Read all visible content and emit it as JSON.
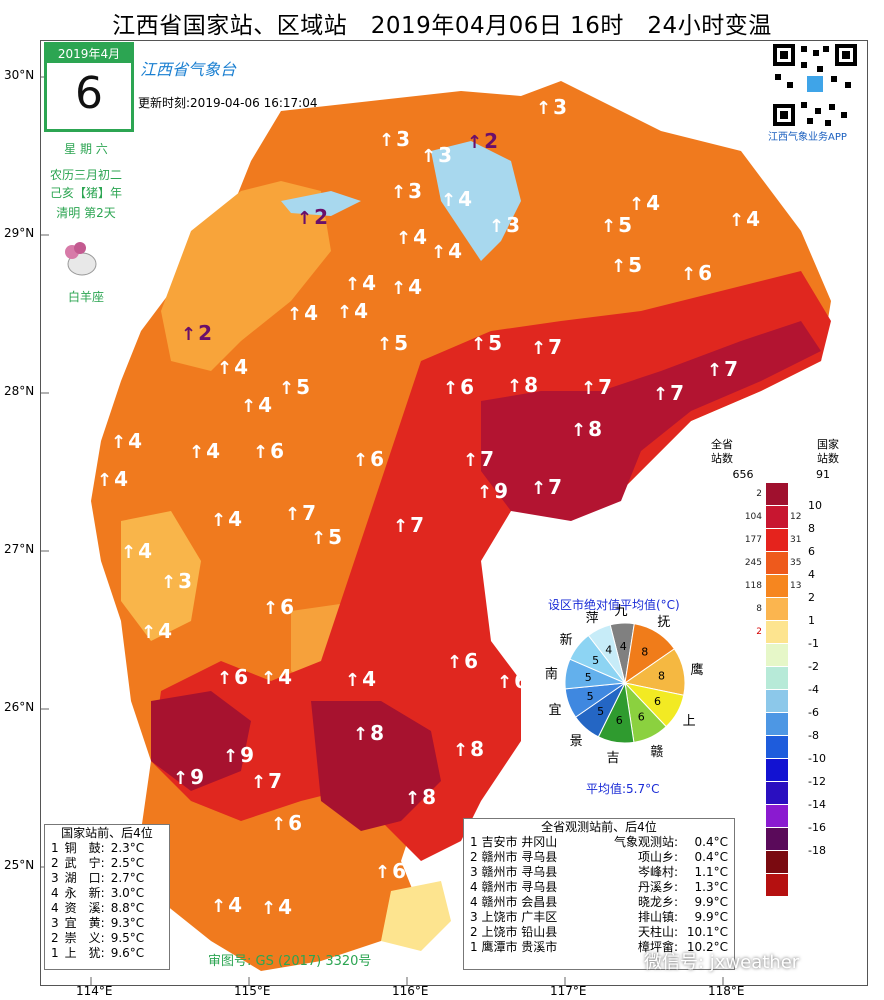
{
  "title": "江西省国家站、区域站　2019年04月06日 16时　24小时变温",
  "date_box": {
    "month": "2019年4月",
    "day": "6"
  },
  "side_info": {
    "weekday": "星 期 六",
    "lunar1": "农历三月初二",
    "lunar2": "己亥【猪】年",
    "solar_term": "清明  第2天",
    "zodiac": "白羊座"
  },
  "logo": "江西省气象台",
  "update": "更新时刻:2019-04-06 16:17:04",
  "qr_label": "江西气象业务APP",
  "lat_labels": [
    "30°N",
    "29°N",
    "28°N",
    "27°N",
    "26°N",
    "25°N"
  ],
  "lon_labels": [
    "114°E",
    "115°E",
    "116°E",
    "117°E",
    "118°E"
  ],
  "legend": {
    "header_all": "全省\n站数",
    "header_nat": "国家\n站数",
    "total_all": "656",
    "total_nat": "91",
    "bins": [
      {
        "color": "#a0102e",
        "all": "2",
        "nat": "",
        "label": "10"
      },
      {
        "color": "#c81630",
        "all": "104",
        "nat": "12",
        "label": "8"
      },
      {
        "color": "#e5231d",
        "all": "177",
        "nat": "31",
        "label": "6"
      },
      {
        "color": "#ee5a1c",
        "all": "245",
        "nat": "35",
        "label": "4"
      },
      {
        "color": "#f6861f",
        "all": "118",
        "nat": "13",
        "label": "2"
      },
      {
        "color": "#fbb54f",
        "all": "8",
        "nat": "",
        "label": "1"
      },
      {
        "color": "#fde48f",
        "all": "2",
        "nat": "",
        "label": "-1"
      },
      {
        "color": "#e6f7c8",
        "all": "",
        "nat": "",
        "label": "-2"
      },
      {
        "color": "#b7ead8",
        "all": "",
        "nat": "",
        "label": "-4"
      },
      {
        "color": "#8cc8ea",
        "all": "",
        "nat": "",
        "label": "-6"
      },
      {
        "color": "#4d97e4",
        "all": "",
        "nat": "",
        "label": "-8"
      },
      {
        "color": "#1e5cdc",
        "all": "",
        "nat": "",
        "label": "-10"
      },
      {
        "color": "#1212d2",
        "all": "",
        "nat": "",
        "label": "-12"
      },
      {
        "color": "#2a0fc0",
        "all": "",
        "nat": "",
        "label": "-14"
      },
      {
        "color": "#8a1ad0",
        "all": "",
        "nat": "",
        "label": "-16"
      },
      {
        "color": "#5a0a5a",
        "all": "",
        "nat": "",
        "label": "-18"
      },
      {
        "color": "#7a0a10",
        "all": "",
        "nat": "",
        "label": ""
      },
      {
        "color": "#b51010",
        "all": "",
        "nat": "",
        "label": ""
      }
    ]
  },
  "pie": {
    "title": "设区市绝对值平均值(°C)",
    "average": "平均值:5.7°C",
    "slices": [
      {
        "city": "九",
        "value": "4",
        "color": "#808080"
      },
      {
        "city": "抚",
        "value": "8",
        "color": "#f07c1a"
      },
      {
        "city": "鹰",
        "value": "8",
        "color": "#f5b841"
      },
      {
        "city": "上",
        "value": "6",
        "color": "#f2ea23"
      },
      {
        "city": "赣",
        "value": "6",
        "color": "#8bd13f"
      },
      {
        "city": "吉",
        "value": "6",
        "color": "#2f9b2f"
      },
      {
        "city": "景",
        "value": "5",
        "color": "#2466c4"
      },
      {
        "city": "宜",
        "value": "5",
        "color": "#3f88e0"
      },
      {
        "city": "南",
        "value": "5",
        "color": "#63b0ec"
      },
      {
        "city": "新",
        "value": "5",
        "color": "#8dd4f3"
      },
      {
        "city": "萍",
        "value": "4",
        "color": "#c7ecf8"
      }
    ]
  },
  "left_box": {
    "header": "国家站前、后4位",
    "rows": [
      {
        "rank": "1",
        "name": "铜　鼓:",
        "value": "2.3°C"
      },
      {
        "rank": "2",
        "name": "武　宁:",
        "value": "2.5°C"
      },
      {
        "rank": "3",
        "name": "湖　口:",
        "value": "2.7°C"
      },
      {
        "rank": "4",
        "name": "永　新:",
        "value": "3.0°C"
      },
      {
        "rank": "4",
        "name": "资　溪:",
        "value": "8.8°C"
      },
      {
        "rank": "3",
        "name": "宜　黄:",
        "value": "9.3°C"
      },
      {
        "rank": "2",
        "name": "崇　义:",
        "value": "9.5°C"
      },
      {
        "rank": "1",
        "name": "上　犹:",
        "value": "9.6°C"
      }
    ]
  },
  "right_box": {
    "header": "全省观测站前、后4位",
    "rows": [
      {
        "rank": "1",
        "city": "吉安市 井冈山",
        "station": "气象观测站:",
        "value": "0.4°C"
      },
      {
        "rank": "2",
        "city": "赣州市 寻乌县",
        "station": "项山乡:",
        "value": "0.4°C"
      },
      {
        "rank": "3",
        "city": "赣州市 寻乌县",
        "station": "岑峰村:",
        "value": "1.1°C"
      },
      {
        "rank": "4",
        "city": "赣州市 寻乌县",
        "station": "丹溪乡:",
        "value": "1.3°C"
      },
      {
        "rank": "4",
        "city": "赣州市 会昌县",
        "station": "晓龙乡:",
        "value": "9.9°C"
      },
      {
        "rank": "3",
        "city": "上饶市 广丰区",
        "station": "排山镇:",
        "value": "9.9°C"
      },
      {
        "rank": "2",
        "city": "上饶市 铅山县",
        "station": "天柱山:",
        "value": "10.1°C"
      },
      {
        "rank": "1",
        "city": "鹰潭市 贵溪市",
        "station": "樟坪畲:",
        "value": "10.2°C"
      }
    ]
  },
  "approval": "审图号: GS (2017) 3320号",
  "wechat": "微信号: jxweather",
  "stations": [
    {
      "v": "3",
      "purple": false
    },
    {
      "v": "3",
      "purple": false
    },
    {
      "v": "2",
      "purple": true
    },
    {
      "v": "3",
      "purple": false
    },
    {
      "v": "3",
      "purple": false
    },
    {
      "v": "4",
      "purple": false
    },
    {
      "v": "4",
      "purple": false
    },
    {
      "v": "2",
      "purple": true
    },
    {
      "v": "3",
      "purple": false
    },
    {
      "v": "4",
      "purple": false
    },
    {
      "v": "5",
      "purple": false
    },
    {
      "v": "4",
      "purple": false
    },
    {
      "v": "4",
      "purple": false
    },
    {
      "v": "4",
      "purple": false
    },
    {
      "v": "4",
      "purple": false
    },
    {
      "v": "5",
      "purple": false
    },
    {
      "v": "6",
      "purple": false
    },
    {
      "v": "2",
      "purple": true
    },
    {
      "v": "4",
      "purple": false
    },
    {
      "v": "4",
      "purple": false
    },
    {
      "v": "5",
      "purple": false
    },
    {
      "v": "5",
      "purple": false
    },
    {
      "v": "7",
      "purple": false
    },
    {
      "v": "4",
      "purple": false
    },
    {
      "v": "4",
      "purple": false
    },
    {
      "v": "5",
      "purple": false
    },
    {
      "v": "6",
      "purple": false
    },
    {
      "v": "8",
      "purple": false
    },
    {
      "v": "7",
      "purple": false
    },
    {
      "v": "7",
      "purple": false
    },
    {
      "v": "7",
      "purple": false
    },
    {
      "v": "4",
      "purple": false
    },
    {
      "v": "4",
      "purple": false
    },
    {
      "v": "6",
      "purple": false
    },
    {
      "v": "6",
      "purple": false
    },
    {
      "v": "7",
      "purple": false
    },
    {
      "v": "8",
      "purple": false
    },
    {
      "v": "4",
      "purple": false
    },
    {
      "v": "4",
      "purple": false
    },
    {
      "v": "7",
      "purple": false
    },
    {
      "v": "9",
      "purple": false
    },
    {
      "v": "7",
      "purple": false
    },
    {
      "v": "4",
      "purple": false
    },
    {
      "v": "5",
      "purple": false
    },
    {
      "v": "7",
      "purple": false
    },
    {
      "v": "7",
      "purple": false
    },
    {
      "v": "8",
      "purple": false
    },
    {
      "v": "3",
      "purple": false
    },
    {
      "v": "6",
      "purple": false
    },
    {
      "v": "6",
      "purple": false
    },
    {
      "v": "4",
      "purple": false
    },
    {
      "v": "6",
      "purple": false
    },
    {
      "v": "4",
      "purple": false
    },
    {
      "v": "4",
      "purple": false
    },
    {
      "v": "6",
      "purple": false
    },
    {
      "v": "6",
      "purple": false
    },
    {
      "v": "9",
      "purple": false
    },
    {
      "v": "9",
      "purple": false
    },
    {
      "v": "7",
      "purple": false
    },
    {
      "v": "8",
      "purple": false
    },
    {
      "v": "8",
      "purple": false
    },
    {
      "v": "8",
      "purple": false
    },
    {
      "v": "6",
      "purple": false
    },
    {
      "v": "6",
      "purple": false
    },
    {
      "v": "4",
      "purple": false
    },
    {
      "v": "4",
      "purple": false
    }
  ]
}
